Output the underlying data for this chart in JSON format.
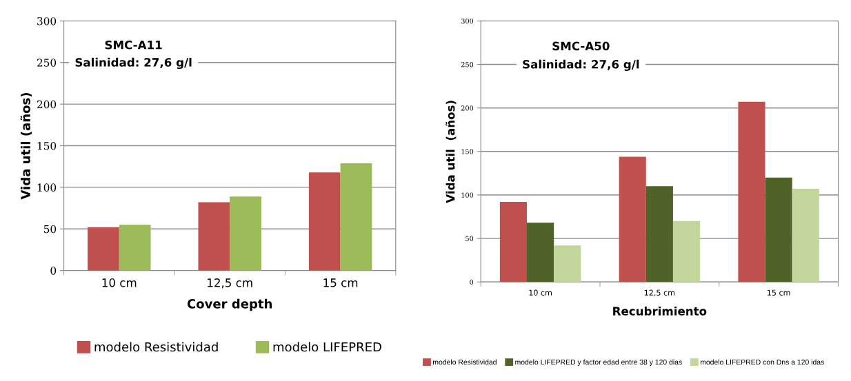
{
  "chart_data": [
    {
      "type": "bar",
      "title": "SMC-A11",
      "subtitle": "Salinidad: 27,6 g/l",
      "xlabel": "Cover depth",
      "ylabel": "Vida util (años)",
      "categories": [
        "10 cm",
        "12,5 cm",
        "15 cm"
      ],
      "series": [
        {
          "name": "modelo Resistividad",
          "color": "#c0504d",
          "values": [
            52,
            82,
            118
          ]
        },
        {
          "name": "modelo LIFEPRED",
          "color": "#9bbb59",
          "values": [
            55,
            89,
            129
          ]
        }
      ],
      "ylim": [
        0,
        300
      ],
      "yticks": [
        0,
        50,
        100,
        150,
        200,
        250,
        300
      ],
      "grid": "y",
      "legend": "bottom"
    },
    {
      "type": "bar",
      "title": "SMC-A50",
      "subtitle": "Salinidad: 27,6 g/l",
      "xlabel": "Recubrimiento",
      "ylabel": "Vida util  (años)",
      "categories": [
        "10 cm",
        "12,5 cm",
        "15 cm"
      ],
      "series": [
        {
          "name": "modelo Resistividad",
          "color": "#c0504d",
          "values": [
            92,
            144,
            207
          ]
        },
        {
          "name": "modelo LIFEPRED y factor edad entre 38 y 120 dias",
          "color": "#4f6228",
          "values": [
            68,
            110,
            120
          ]
        },
        {
          "name": "modelo LIFEPRED con Dns a 120 idas",
          "color": "#c3d69b",
          "values": [
            42,
            70,
            107
          ]
        }
      ],
      "ylim": [
        0,
        300
      ],
      "yticks": [
        0,
        50,
        100,
        150,
        200,
        250,
        300
      ],
      "grid": "y",
      "legend": "bottom"
    }
  ]
}
